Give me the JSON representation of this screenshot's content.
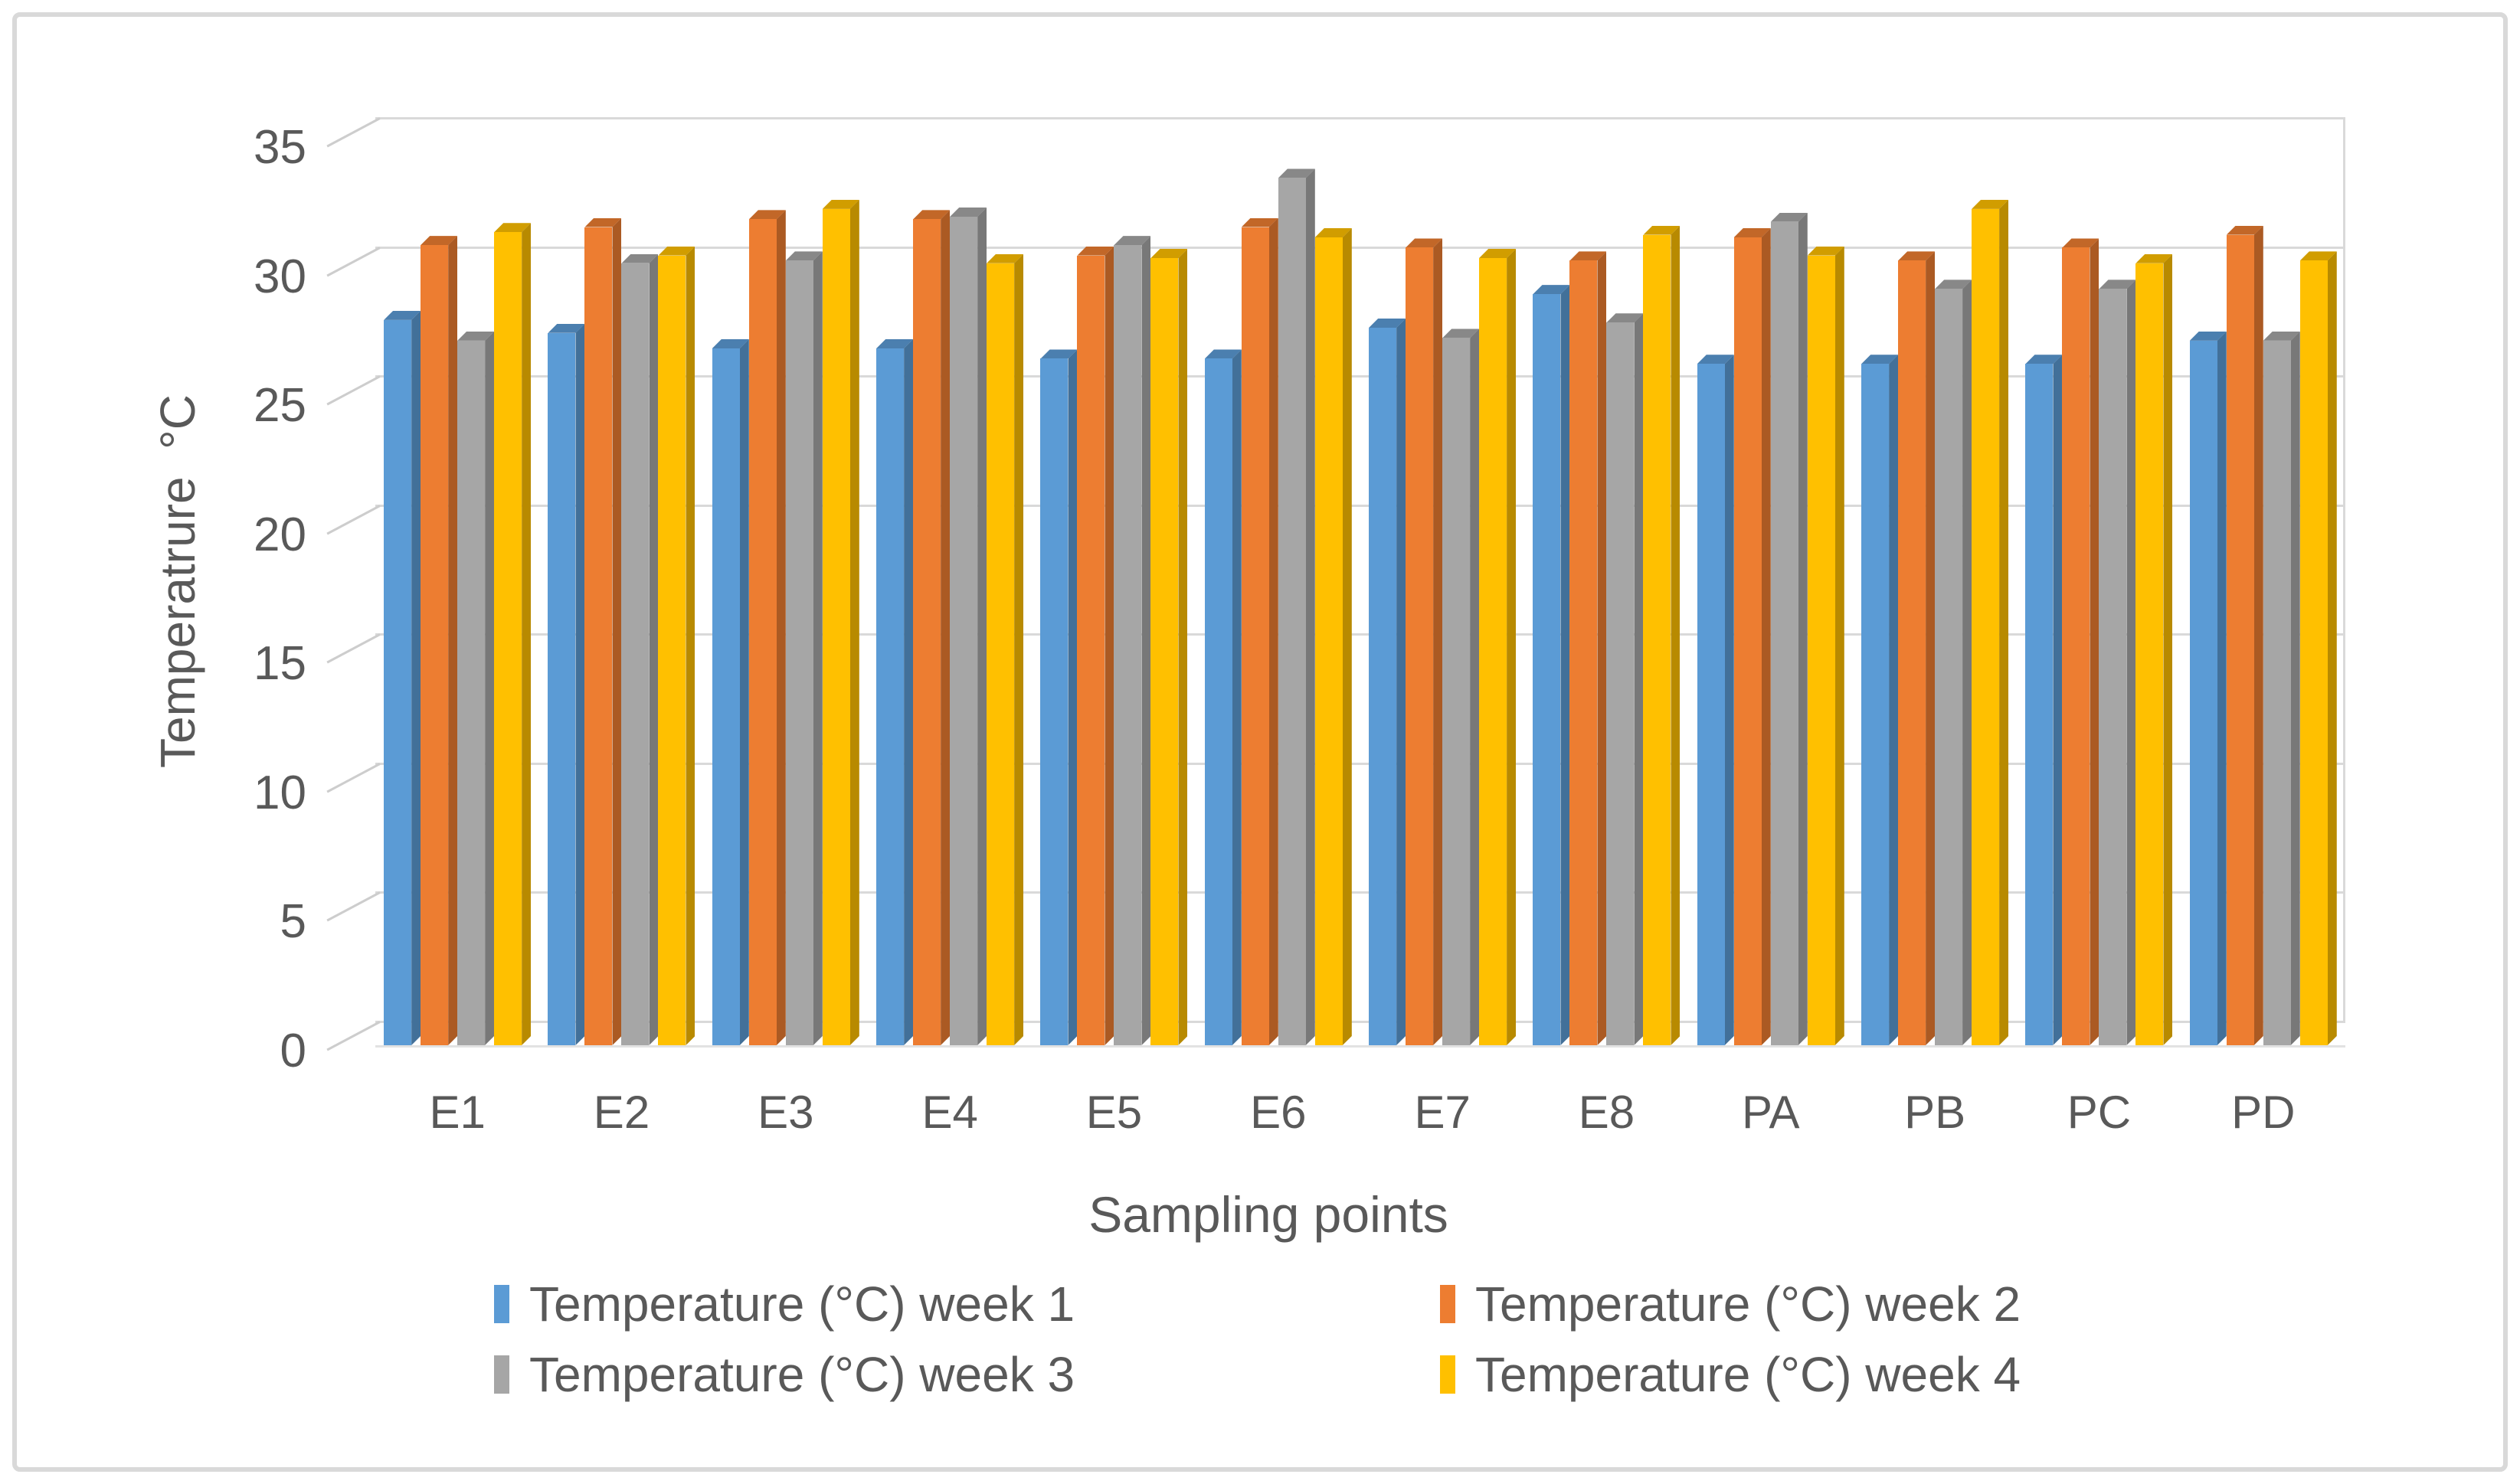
{
  "figure": {
    "background": "#FFFFFF",
    "border_color": "#D9D9D9"
  },
  "chart_data": {
    "type": "bar",
    "style": "3d-clustered-column",
    "title": "",
    "xlabel": "Sampling points",
    "ylabel": "Temperatrure  °C",
    "categories": [
      "E1",
      "E2",
      "E3",
      "E4",
      "E5",
      "E6",
      "E7",
      "E8",
      "PA",
      "PB",
      "PC",
      "PD"
    ],
    "series": [
      {
        "name": "Temperature (°C) week 1",
        "color": "#5B9BD5",
        "values": [
          27.5,
          27.0,
          26.4,
          26.4,
          26.0,
          26.0,
          27.2,
          28.5,
          25.8,
          25.8,
          25.8,
          26.7
        ]
      },
      {
        "name": "Temperature (°C) week 2",
        "color": "#ED7D31",
        "values": [
          30.4,
          31.1,
          31.4,
          31.4,
          30.0,
          31.1,
          30.3,
          29.8,
          30.7,
          29.8,
          30.3,
          30.8
        ]
      },
      {
        "name": "Temperature (°C) week 3",
        "color": "#A6A6A6",
        "values": [
          26.7,
          29.7,
          29.8,
          31.5,
          30.4,
          33.0,
          26.8,
          27.4,
          31.3,
          28.7,
          28.7,
          26.7
        ]
      },
      {
        "name": "Temperature (°C) week 4",
        "color": "#FFC000",
        "values": [
          30.9,
          30.0,
          31.8,
          29.7,
          29.9,
          30.7,
          29.9,
          30.8,
          30.0,
          31.8,
          29.7,
          29.8
        ]
      }
    ],
    "ylim": [
      0,
      35
    ],
    "yticks": [
      0,
      5,
      10,
      15,
      20,
      25,
      30,
      35
    ],
    "grid": true,
    "legend_position": "bottom",
    "gridline_color": "#D9D9D9",
    "axis_text_color": "#595959"
  }
}
